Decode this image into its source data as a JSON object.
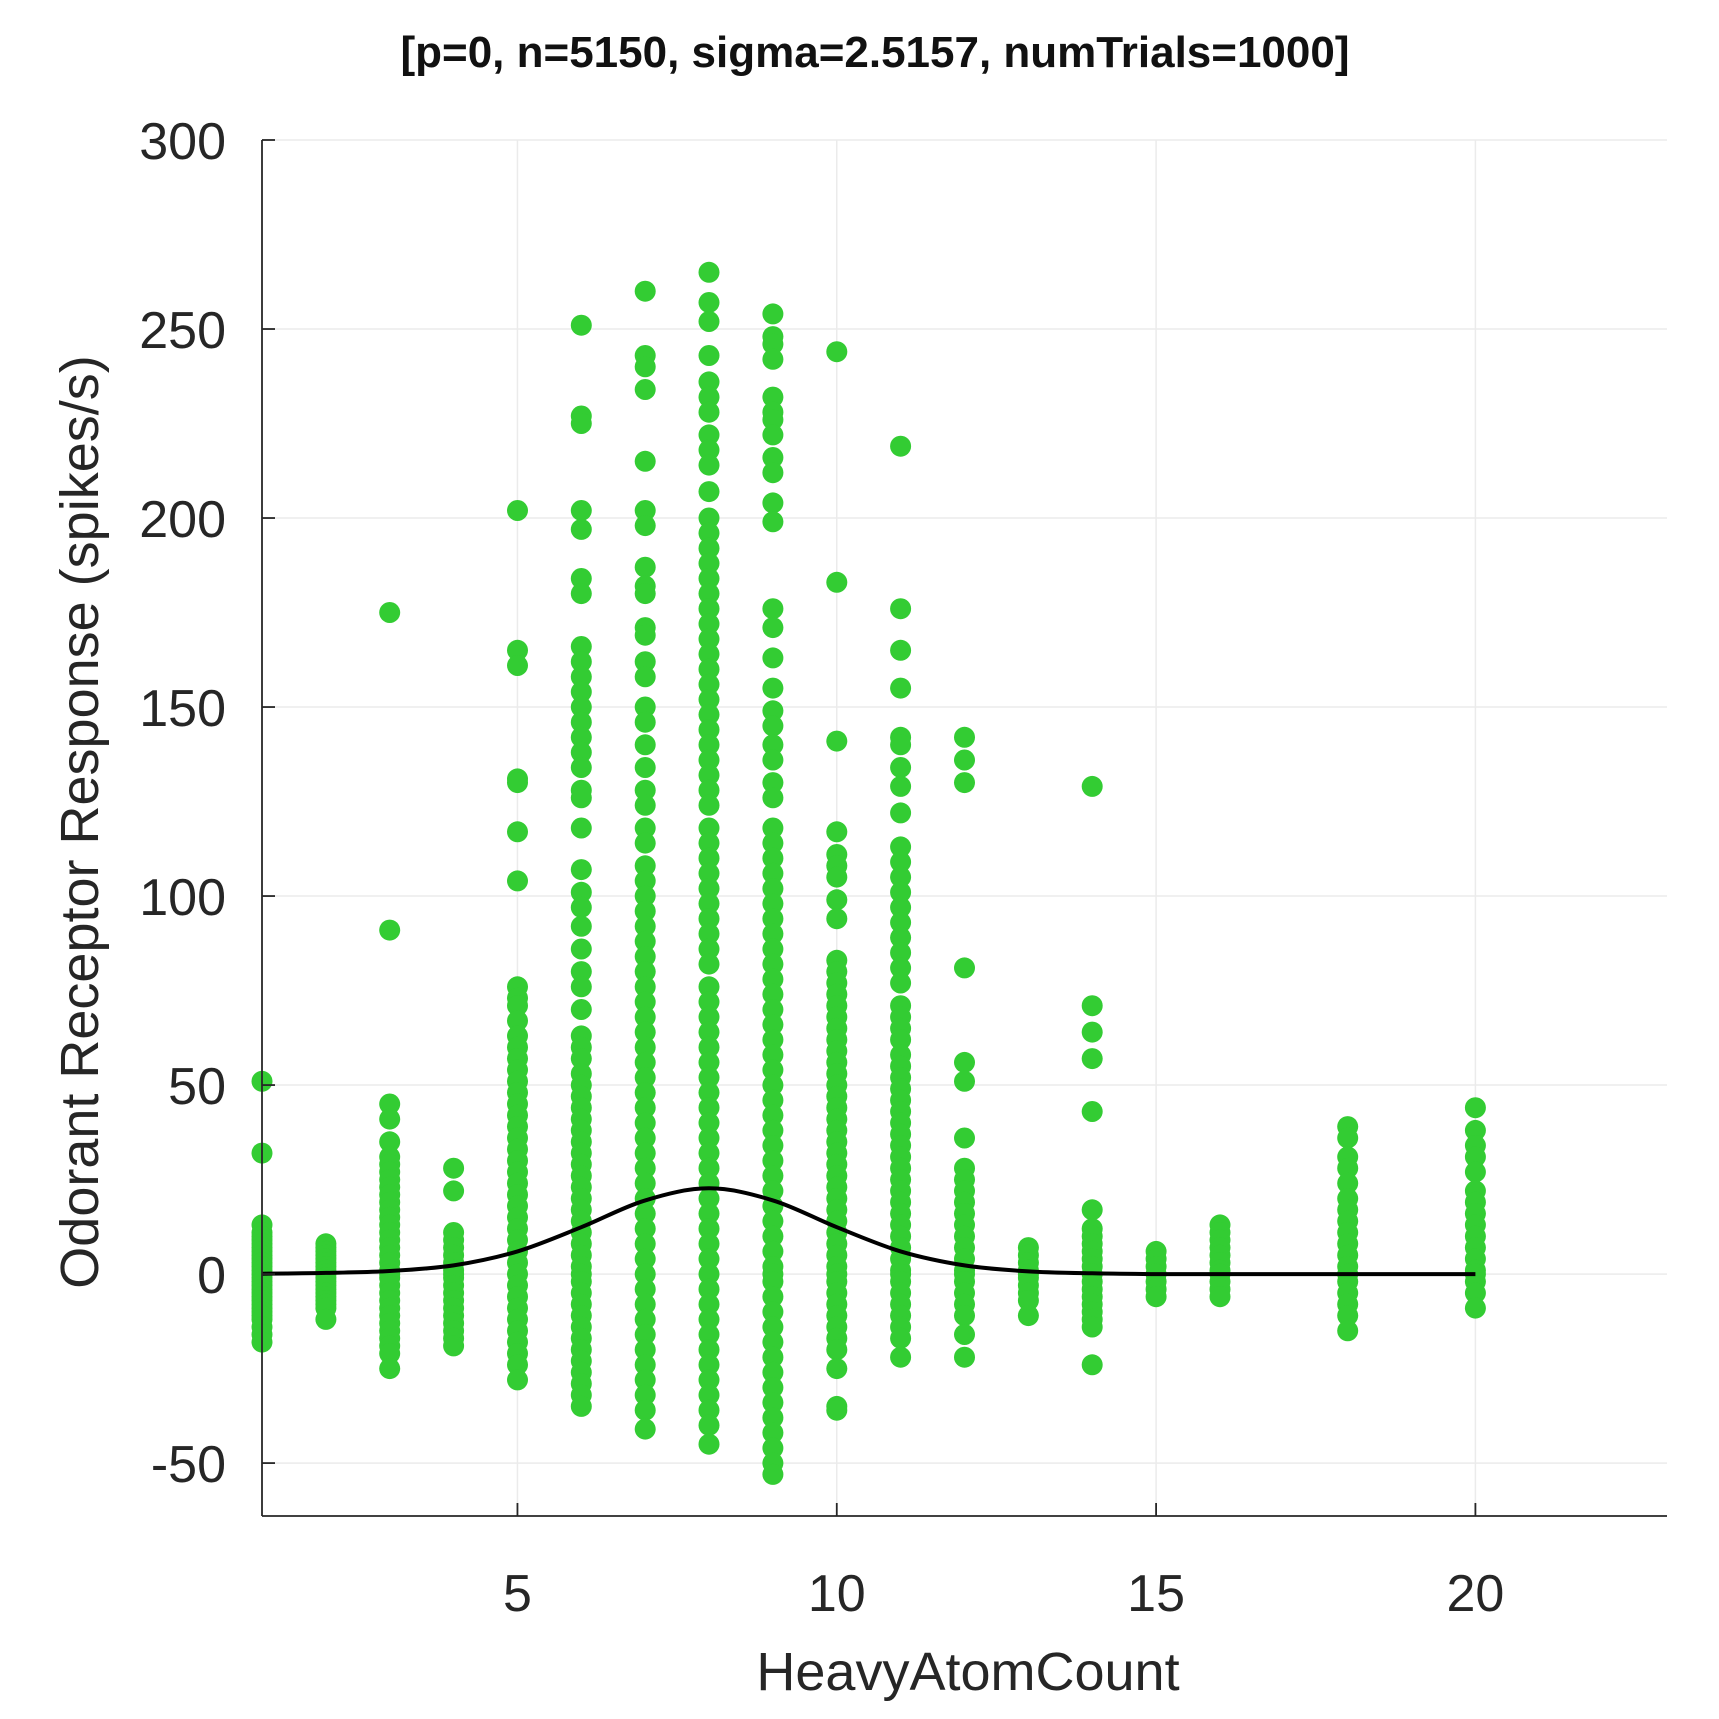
{
  "chart_data": {
    "type": "scatter",
    "title": "[p=0, n=5150, sigma=2.5157, numTrials=1000]",
    "xlabel": "HeavyAtomCount",
    "ylabel": "Odorant Receptor Response (spikes/s)",
    "xlim": [
      1,
      23
    ],
    "ylim": [
      -64,
      300
    ],
    "xticks": [
      5,
      10,
      15,
      20
    ],
    "yticks": [
      -50,
      0,
      50,
      100,
      150,
      200,
      250,
      300
    ],
    "grid": true,
    "colors": {
      "points": "#33cc33",
      "curve": "#000000",
      "axes": "#262626",
      "grid": "#ebebeb"
    },
    "series": [
      {
        "type": "scatter",
        "points": [
          {
            "x": 1,
            "y": [
              51,
              32,
              13,
              11,
              10,
              9,
              8,
              7,
              6,
              5,
              4,
              3,
              2,
              1,
              0,
              -1,
              -2,
              -3,
              -4,
              -5,
              -6,
              -7,
              -8,
              -9,
              -10,
              -11,
              -12,
              -14,
              -16,
              -18
            ]
          },
          {
            "x": 2,
            "y": [
              8,
              7,
              6,
              5,
              4,
              3,
              2,
              1,
              0,
              -1,
              -2,
              -3,
              -4,
              -5,
              -6,
              -7,
              -8,
              -9,
              -12
            ]
          },
          {
            "x": 3,
            "y": [
              175,
              91,
              45,
              41,
              35,
              31,
              29,
              27,
              25,
              23,
              21,
              19,
              17,
              15,
              13,
              11,
              9,
              7,
              5,
              3,
              1,
              0,
              -1,
              -3,
              -5,
              -7,
              -9,
              -11,
              -13,
              -15,
              -17,
              -19,
              -21,
              -25
            ]
          },
          {
            "x": 4,
            "y": [
              28,
              22,
              11,
              9,
              7,
              5,
              3,
              1,
              0,
              -1,
              -3,
              -5,
              -7,
              -9,
              -11,
              -13,
              -15,
              -17,
              -19
            ]
          },
          {
            "x": 5,
            "y": [
              202,
              165,
              161,
              131,
              130,
              117,
              104,
              76,
              73,
              71,
              67,
              63,
              60,
              57,
              54,
              51,
              48,
              45,
              42,
              39,
              36,
              33,
              30,
              27,
              24,
              21,
              18,
              15,
              12,
              9,
              6,
              3,
              0,
              -3,
              -6,
              -9,
              -12,
              -15,
              -18,
              -21,
              -24,
              -28
            ]
          },
          {
            "x": 6,
            "y": [
              251,
              227,
              225,
              202,
              197,
              184,
              180,
              166,
              162,
              158,
              154,
              150,
              146,
              142,
              138,
              134,
              128,
              126,
              118,
              107,
              101,
              97,
              92,
              86,
              80,
              76,
              70,
              63,
              60,
              57,
              53,
              50,
              47,
              44,
              41,
              38,
              35,
              32,
              29,
              26,
              23,
              20,
              17,
              14,
              11,
              8,
              5,
              2,
              0,
              -2,
              -5,
              -8,
              -11,
              -14,
              -17,
              -20,
              -23,
              -26,
              -29,
              -32,
              -35
            ]
          },
          {
            "x": 7,
            "y": [
              260,
              243,
              240,
              234,
              215,
              202,
              198,
              187,
              182,
              180,
              171,
              169,
              162,
              158,
              150,
              146,
              140,
              134,
              128,
              124,
              118,
              114,
              108,
              104,
              100,
              96,
              92,
              88,
              84,
              80,
              76,
              72,
              68,
              64,
              60,
              56,
              52,
              48,
              44,
              40,
              36,
              32,
              28,
              24,
              20,
              16,
              12,
              8,
              4,
              0,
              -4,
              -8,
              -12,
              -16,
              -20,
              -24,
              -28,
              -32,
              -36,
              -41
            ]
          },
          {
            "x": 8,
            "y": [
              265,
              257,
              252,
              243,
              236,
              232,
              228,
              222,
              218,
              214,
              207,
              200,
              196,
              192,
              188,
              184,
              180,
              176,
              172,
              168,
              164,
              160,
              156,
              152,
              148,
              144,
              140,
              136,
              132,
              128,
              124,
              118,
              114,
              110,
              106,
              102,
              98,
              94,
              90,
              86,
              82,
              76,
              72,
              68,
              64,
              60,
              56,
              52,
              48,
              44,
              40,
              36,
              32,
              28,
              24,
              20,
              16,
              12,
              8,
              4,
              0,
              -4,
              -8,
              -12,
              -16,
              -20,
              -24,
              -28,
              -32,
              -36,
              -40,
              -45
            ]
          },
          {
            "x": 9,
            "y": [
              254,
              248,
              246,
              242,
              232,
              228,
              226,
              222,
              216,
              212,
              204,
              199,
              176,
              171,
              163,
              155,
              149,
              145,
              140,
              136,
              130,
              126,
              118,
              114,
              110,
              106,
              102,
              98,
              94,
              90,
              86,
              82,
              78,
              74,
              70,
              66,
              62,
              58,
              54,
              50,
              46,
              42,
              38,
              34,
              30,
              26,
              22,
              18,
              14,
              10,
              6,
              2,
              0,
              -2,
              -6,
              -10,
              -14,
              -18,
              -22,
              -26,
              -30,
              -34,
              -38,
              -42,
              -46,
              -50,
              -53
            ]
          },
          {
            "x": 10,
            "y": [
              244,
              183,
              141,
              117,
              111,
              108,
              105,
              99,
              94,
              83,
              80,
              77,
              74,
              71,
              68,
              65,
              62,
              59,
              56,
              53,
              50,
              47,
              44,
              41,
              38,
              35,
              32,
              29,
              26,
              23,
              20,
              17,
              14,
              11,
              8,
              5,
              2,
              0,
              -2,
              -5,
              -8,
              -11,
              -14,
              -17,
              -20,
              -25,
              -35,
              -36
            ]
          },
          {
            "x": 11,
            "y": [
              219,
              176,
              165,
              155,
              142,
              140,
              134,
              129,
              122,
              113,
              109,
              105,
              101,
              97,
              93,
              89,
              85,
              81,
              77,
              71,
              68,
              65,
              62,
              58,
              55,
              52,
              49,
              46,
              43,
              40,
              37,
              34,
              31,
              28,
              25,
              22,
              19,
              16,
              13,
              10,
              7,
              4,
              1,
              0,
              -2,
              -5,
              -8,
              -11,
              -14,
              -17,
              -22
            ]
          },
          {
            "x": 12,
            "y": [
              142,
              136,
              130,
              81,
              56,
              51,
              36,
              28,
              25,
              22,
              19,
              16,
              13,
              10,
              7,
              4,
              1,
              0,
              -2,
              -5,
              -8,
              -11,
              -16,
              -22
            ]
          },
          {
            "x": 13,
            "y": [
              7,
              5,
              3,
              1,
              0,
              -1,
              -3,
              -5,
              -7,
              -11
            ]
          },
          {
            "x": 14,
            "y": [
              129,
              71,
              64,
              57,
              43,
              17,
              12,
              10,
              8,
              6,
              4,
              2,
              0,
              -2,
              -4,
              -6,
              -8,
              -10,
              -12,
              -14,
              -24
            ]
          },
          {
            "x": 15,
            "y": [
              6,
              4,
              2,
              0,
              -2,
              -4,
              -6
            ]
          },
          {
            "x": 16,
            "y": [
              13,
              11,
              9,
              7,
              5,
              3,
              1,
              0,
              -2,
              -4,
              -6
            ]
          },
          {
            "x": 18,
            "y": [
              39,
              36,
              31,
              28,
              24,
              20,
              17,
              14,
              11,
              8,
              5,
              2,
              0,
              -2,
              -5,
              -8,
              -11,
              -15
            ]
          },
          {
            "x": 20,
            "y": [
              44,
              38,
              34,
              31,
              27,
              22,
              19,
              16,
              13,
              10,
              7,
              4,
              1,
              0,
              -2,
              -5,
              -9
            ]
          }
        ]
      },
      {
        "type": "line",
        "x": [
          1,
          2,
          3,
          4,
          5,
          6,
          7,
          8,
          9,
          10,
          11,
          12,
          13,
          14,
          15,
          16,
          17,
          18,
          19,
          20
        ],
        "y": [
          0.1,
          0.3,
          0.8,
          2.3,
          6.0,
          12.4,
          19.5,
          22.7,
          19.5,
          12.4,
          6.0,
          2.3,
          0.7,
          0.2,
          0.0,
          0.0,
          0.0,
          0.0,
          0.0,
          0.0
        ]
      }
    ]
  }
}
